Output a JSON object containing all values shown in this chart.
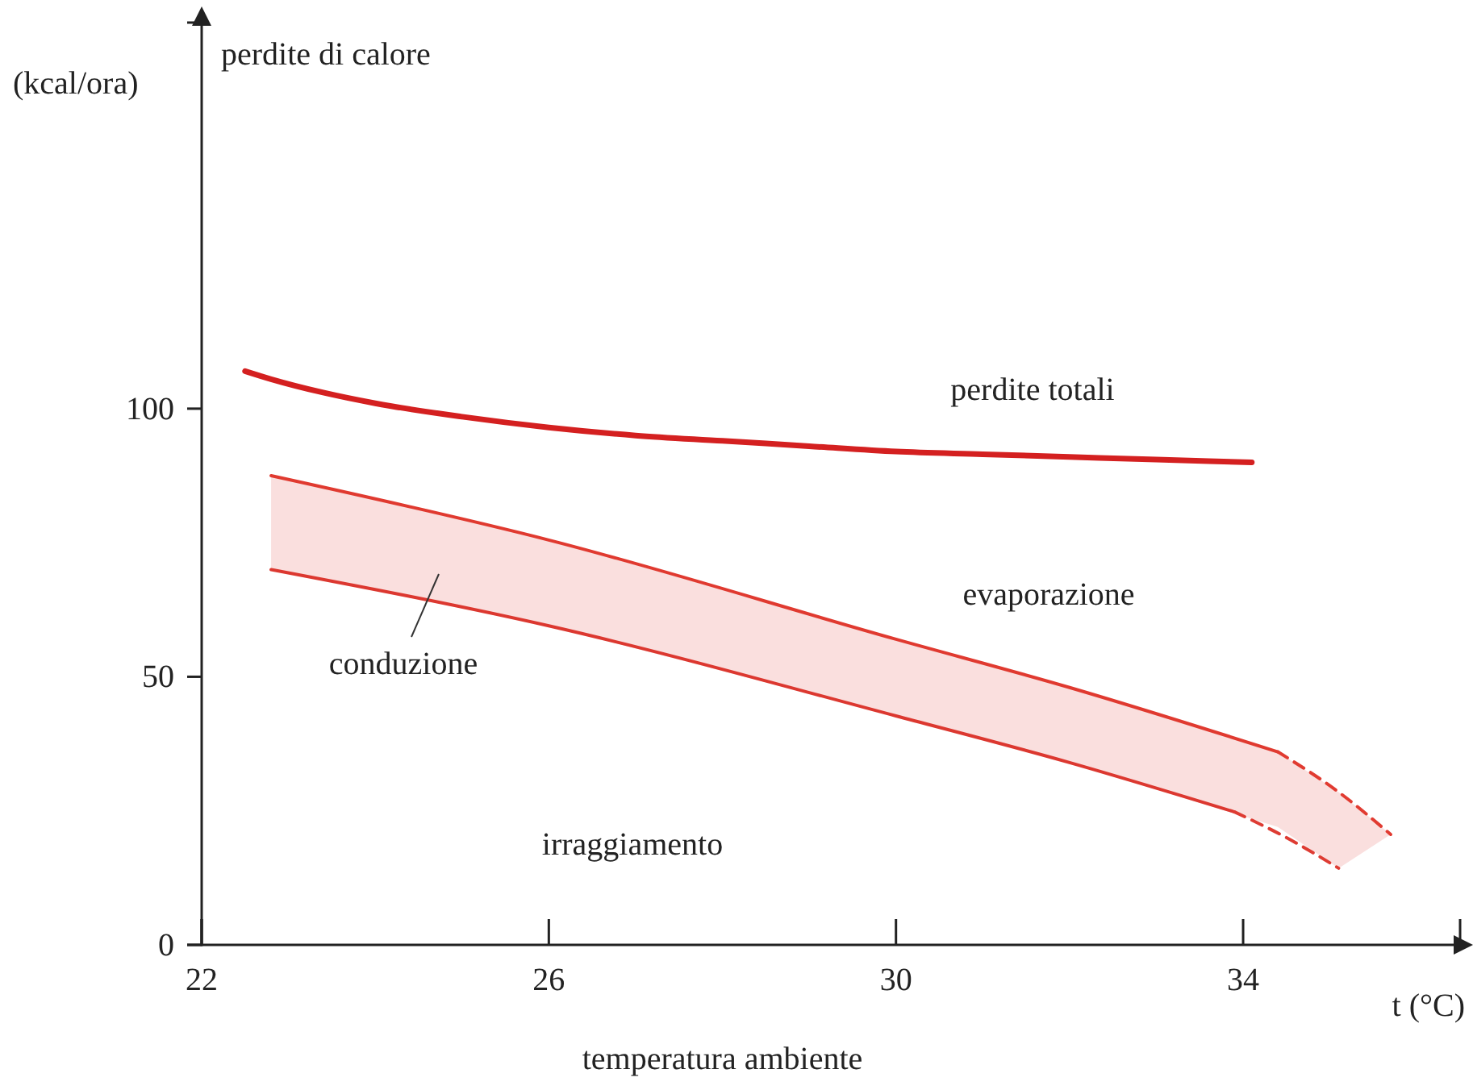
{
  "chart_data": {
    "type": "line",
    "ylabel": "perdite di calore",
    "xlabel": "temperatura ambiente",
    "xlim": [
      22,
      36.5
    ],
    "ylim": [
      0,
      172
    ],
    "xticks": [
      22,
      26,
      30,
      34
    ],
    "yticks": [
      0,
      50,
      100
    ],
    "grid": false,
    "marker": "none",
    "series": [
      {
        "color": "#d42020",
        "line_style": "solid",
        "x": [
          22.5,
          22.8,
          23.4,
          24,
          25,
          26,
          27,
          28,
          29,
          30,
          31,
          32,
          33,
          34.1
        ],
        "values": [
          107,
          105.5,
          103,
          101,
          98.5,
          96.5,
          95,
          94,
          93,
          92,
          91.5,
          91,
          90.5,
          90
        ]
      },
      {
        "color": "#e03a30",
        "line_style": "solid",
        "x": [
          22.8,
          26,
          30,
          32,
          34.4
        ],
        "values": [
          87.5,
          75.5,
          57,
          48,
          36
        ],
        "lower": [
          70,
          59.5,
          42.7,
          34,
          22
        ],
        "upper": [
          87.5,
          75.5,
          57,
          48,
          36
        ]
      },
      {
        "color": "#e13b31",
        "line_style": "dashed",
        "x": [
          34.4,
          35.1,
          35.7
        ],
        "values": [
          36,
          28.5,
          20.6
        ],
        "lower": [
          22,
          14.3,
          20.6
        ],
        "upper": [
          36,
          28.5,
          20.6
        ]
      },
      {
        "color": "#dc3830",
        "line_style": "solid",
        "x": [
          22.8,
          26,
          30,
          32,
          33.9
        ],
        "values": [
          70,
          59.5,
          42.7,
          34,
          24.8
        ]
      },
      {
        "color": "#de3c33",
        "line_style": "dashed",
        "x": [
          33.9,
          34.5,
          35.1
        ],
        "values": [
          24.8,
          20,
          14.3
        ]
      }
    ],
    "annotations": [
      "(kcal/ora)",
      "t (°C)",
      "perdite totali",
      "evaporazione",
      "conduzione",
      "irraggiamento"
    ]
  }
}
